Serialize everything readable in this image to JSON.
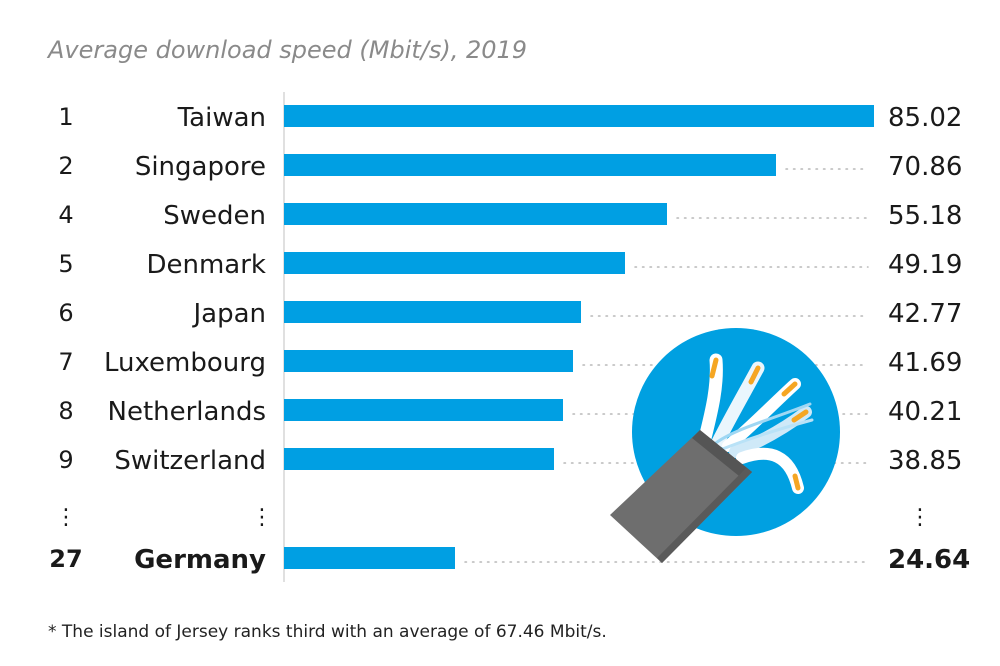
{
  "title": "Average download speed (Mbit/s), 2019",
  "footnote": "* The island of Jersey ranks third with an average of 67.46 Mbit/s.",
  "ellipsis": "⋮",
  "colors": {
    "bar": "#009fe3",
    "dots": "#b8b8b8",
    "axis": "#d6d6d6",
    "circle": "#00a0e1",
    "cable": "#6e6e6e"
  },
  "illustration_icon": "cable-icon",
  "chart_data": {
    "type": "bar",
    "orientation": "horizontal",
    "title": "Average download speed (Mbit/s), 2019",
    "ranks": [
      "1",
      "2",
      "4",
      "5",
      "6",
      "7",
      "8",
      "9",
      "27"
    ],
    "categories": [
      "Taiwan",
      "Singapore",
      "Sweden",
      "Denmark",
      "Japan",
      "Luxembourg",
      "Netherlands",
      "Switzerland",
      "Germany"
    ],
    "values": [
      85.02,
      70.86,
      55.18,
      49.19,
      42.77,
      41.69,
      40.21,
      38.85,
      24.64
    ],
    "value_labels": [
      "85.02",
      "70.86",
      "55.18",
      "49.19",
      "42.77",
      "41.69",
      "40.21",
      "38.85",
      "24.64"
    ],
    "highlight": "Germany",
    "xlim": [
      0,
      85.02
    ],
    "grid": false,
    "legend": "none"
  }
}
